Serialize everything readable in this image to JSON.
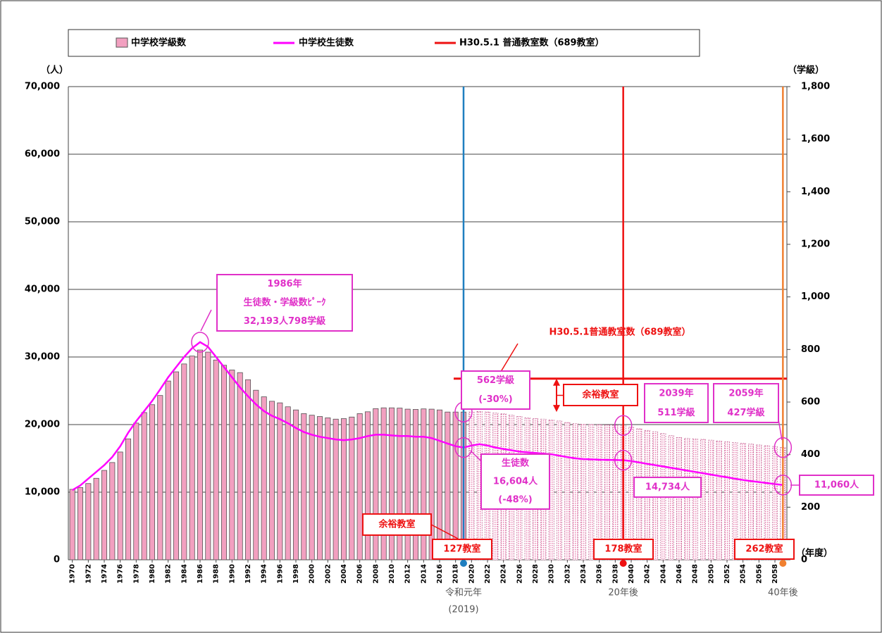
{
  "chart_data": {
    "type": "combo",
    "units": {
      "y": "（人）",
      "y2": "（学級）",
      "x": "（年度）"
    },
    "x": [
      1970,
      1971,
      1972,
      1973,
      1974,
      1975,
      1976,
      1977,
      1978,
      1979,
      1980,
      1981,
      1982,
      1983,
      1984,
      1985,
      1986,
      1987,
      1988,
      1989,
      1990,
      1991,
      1992,
      1993,
      1994,
      1995,
      1996,
      1997,
      1998,
      1999,
      2000,
      2001,
      2002,
      2003,
      2004,
      2005,
      2006,
      2007,
      2008,
      2009,
      2010,
      2011,
      2012,
      2013,
      2014,
      2015,
      2016,
      2017,
      2018,
      2019,
      2020,
      2021,
      2022,
      2023,
      2024,
      2025,
      2026,
      2027,
      2028,
      2029,
      2030,
      2031,
      2032,
      2033,
      2034,
      2035,
      2036,
      2037,
      2038,
      2039,
      2040,
      2041,
      2042,
      2043,
      2044,
      2045,
      2046,
      2047,
      2048,
      2049,
      2050,
      2051,
      2052,
      2053,
      2054,
      2055,
      2056,
      2057,
      2058,
      2059
    ],
    "xlim": [
      1969.5,
      2059.5
    ],
    "xticks": [
      1970,
      1972,
      1974,
      1976,
      1978,
      1980,
      1982,
      1984,
      1986,
      1988,
      1990,
      1992,
      1994,
      1996,
      1998,
      2000,
      2002,
      2004,
      2006,
      2008,
      2010,
      2012,
      2014,
      2016,
      2018,
      2020,
      2022,
      2024,
      2026,
      2028,
      2030,
      2032,
      2034,
      2036,
      2038,
      2040,
      2042,
      2044,
      2046,
      2048,
      2050,
      2052,
      2054,
      2056,
      2058
    ],
    "ylim": [
      0,
      70000
    ],
    "yticks": [
      0,
      {
        "value": 10000,
        "label": "10,000"
      },
      {
        "value": 20000,
        "label": "20,000"
      },
      {
        "value": 30000,
        "label": "30,000"
      },
      {
        "value": 40000,
        "label": "40,000"
      },
      {
        "value": 50000,
        "label": "50,000"
      },
      {
        "value": 60000,
        "label": "60,000"
      },
      {
        "value": 70000,
        "label": "70,000"
      }
    ],
    "y2lim": [
      0,
      1800
    ],
    "y2ticks": [
      0,
      200,
      400,
      600,
      800,
      {
        "value": 1000,
        "label": "1,000"
      },
      {
        "value": 1200,
        "label": "1,200"
      },
      {
        "value": 1400,
        "label": "1,400"
      },
      {
        "value": 1600,
        "label": "1,600"
      },
      {
        "value": 1800,
        "label": "1,800"
      }
    ],
    "grid": true,
    "series": [
      {
        "name": "中学校学級数",
        "type": "bar",
        "axis": "y2",
        "color": "#f2a0c0",
        "values": [
          268,
          275,
          290,
          310,
          340,
          370,
          410,
          460,
          520,
          560,
          590,
          625,
          680,
          715,
          745,
          775,
          798,
          790,
          760,
          740,
          722,
          712,
          685,
          645,
          620,
          603,
          597,
          582,
          570,
          556,
          550,
          545,
          540,
          535,
          537,
          543,
          556,
          563,
          575,
          578,
          578,
          577,
          573,
          572,
          574,
          573,
          570,
          562,
          562,
          562,
          562,
          564,
          562,
          558,
          555,
          550,
          545,
          540,
          537,
          535,
          532,
          528,
          522,
          518,
          516,
          515,
          514,
          513,
          512,
          511,
          505,
          498,
          492,
          487,
          480,
          472,
          465,
          462,
          460,
          458,
          455,
          452,
          449,
          446,
          443,
          440,
          437,
          434,
          431,
          427
        ]
      },
      {
        "name": "中学校生徒数",
        "type": "line",
        "color": "#ff00ff",
        "values": [
          10300,
          11000,
          12000,
          13000,
          14000,
          15200,
          16800,
          18800,
          20500,
          22000,
          23500,
          25200,
          27000,
          28500,
          30000,
          31300,
          32193,
          31500,
          30000,
          28500,
          27000,
          25500,
          24200,
          23000,
          22000,
          21300,
          20800,
          20200,
          19500,
          18900,
          18500,
          18200,
          18000,
          17800,
          17700,
          17800,
          18000,
          18300,
          18500,
          18500,
          18400,
          18300,
          18300,
          18200,
          18200,
          18000,
          17600,
          17200,
          16800,
          16604,
          16900,
          17100,
          16900,
          16600,
          16400,
          16200,
          16000,
          15900,
          15800,
          15700,
          15600,
          15400,
          15200,
          15000,
          14900,
          14850,
          14800,
          14780,
          14760,
          14734,
          14600,
          14400,
          14200,
          14000,
          13800,
          13600,
          13400,
          13200,
          13000,
          12800,
          12600,
          12400,
          12200,
          12000,
          11800,
          11650,
          11500,
          11350,
          11200,
          11060
        ]
      }
    ],
    "reference": {
      "name": "H30.5.1 普通教室数（689教室）",
      "value": 689,
      "axis": "y2",
      "color": "#ee1111"
    },
    "markers": [
      {
        "x": 2019,
        "color": "#1f7fc0",
        "labels": [
          "令和元年",
          "(2019)"
        ]
      },
      {
        "x": 2039,
        "color": "#ee1111",
        "labels": [
          "20年後"
        ]
      },
      {
        "x": 2059,
        "color": "#f08030",
        "labels": [
          "40年後"
        ]
      }
    ],
    "annotations": [
      {
        "lines": [
          "1986年",
          "生徒数・学級数ﾋﾟｰｸ",
          "32,193人798学級"
        ],
        "color": "#e030c8"
      },
      {
        "lines": [
          "H30.5.1普通教室数（689教室）"
        ],
        "color": "#ee1111"
      },
      {
        "lines": [
          "562学級",
          "(-30%)"
        ],
        "color": "#e030c8"
      },
      {
        "lines": [
          "余裕教室"
        ],
        "color": "#ee1111"
      },
      {
        "lines": [
          "2039年",
          "511学級"
        ],
        "color": "#e030c8"
      },
      {
        "lines": [
          "2059年",
          "427学級"
        ],
        "color": "#e030c8"
      },
      {
        "lines": [
          "生徒数",
          "16,604人",
          "(-48%)"
        ],
        "color": "#e030c8"
      },
      {
        "lines": [
          "14,734人"
        ],
        "color": "#e030c8"
      },
      {
        "lines": [
          "11,060人"
        ],
        "color": "#e030c8"
      },
      {
        "lines": [
          "余裕教室"
        ],
        "color": "#ee1111"
      },
      {
        "lines": [
          "127教室"
        ],
        "color": "#ee1111"
      },
      {
        "lines": [
          "178教室"
        ],
        "color": "#ee1111"
      },
      {
        "lines": [
          "262教室"
        ],
        "color": "#ee1111"
      }
    ]
  }
}
